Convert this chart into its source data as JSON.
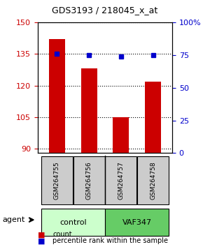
{
  "title": "GDS3193 / 218045_x_at",
  "samples": [
    "GSM264755",
    "GSM264756",
    "GSM264757",
    "GSM264758"
  ],
  "bar_values": [
    142,
    128,
    105,
    122
  ],
  "percentile_values": [
    76,
    75,
    74,
    75
  ],
  "bar_color": "#cc0000",
  "percentile_color": "#0000cc",
  "ylim_left": [
    88,
    150
  ],
  "ylim_right": [
    0,
    100
  ],
  "yticks_left": [
    90,
    105,
    120,
    135,
    150
  ],
  "yticks_right": [
    0,
    25,
    50,
    75,
    100
  ],
  "ytick_labels_right": [
    "0",
    "25",
    "50",
    "75",
    "100%"
  ],
  "groups": [
    {
      "label": "control",
      "samples": [
        0,
        1
      ],
      "color": "#ccffcc"
    },
    {
      "label": "VAF347",
      "samples": [
        2,
        3
      ],
      "color": "#66cc66"
    }
  ],
  "group_row_label": "agent",
  "legend_count_label": "count",
  "legend_percentile_label": "percentile rank within the sample",
  "background_color": "#ffffff",
  "grid_color": "#000000",
  "sample_box_color": "#cccccc"
}
